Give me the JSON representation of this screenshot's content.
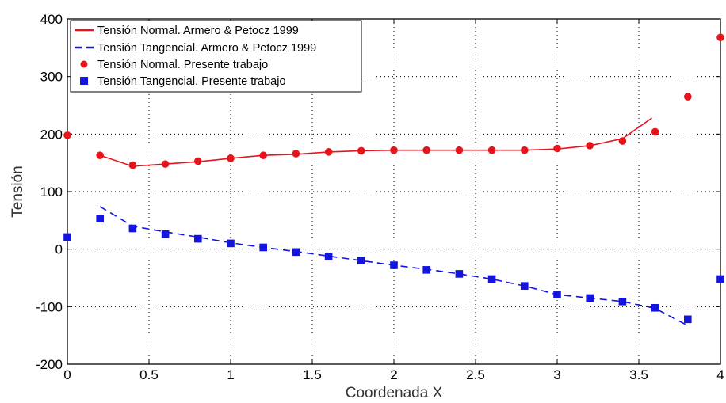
{
  "chart_data": {
    "type": "line",
    "xlabel": "Coordenada X",
    "ylabel": "Tensión",
    "xlim": [
      0,
      4
    ],
    "ylim": [
      -200,
      400
    ],
    "xticks": [
      "0",
      "0.5",
      "1",
      "1.5",
      "2",
      "2.5",
      "3",
      "3.5",
      "4"
    ],
    "yticks": [
      "-200",
      "-100",
      "0",
      "100",
      "200",
      "300",
      "400"
    ],
    "grid": true,
    "legend_position": "top-left",
    "series": [
      {
        "name": "Tensión Normal. Armero & Petocz 1999",
        "style": "solid-line",
        "color": "#e8141c",
        "x": [
          0.2,
          0.4,
          0.6,
          0.8,
          1.0,
          1.2,
          1.4,
          1.6,
          1.8,
          2.0,
          2.2,
          2.4,
          2.6,
          2.8,
          3.0,
          3.2,
          3.4,
          3.58
        ],
        "y": [
          163,
          144,
          148,
          152,
          158,
          163,
          165,
          169,
          171,
          172,
          172,
          172,
          172,
          172,
          174,
          180,
          192,
          228
        ]
      },
      {
        "name": "Tensión Tangencial.  Armero & Petocz 1999",
        "style": "dashed-line",
        "color": "#1414e0",
        "x": [
          0.2,
          0.4,
          0.6,
          0.8,
          1.0,
          1.2,
          1.4,
          1.6,
          1.8,
          2.0,
          2.2,
          2.4,
          2.6,
          2.8,
          3.0,
          3.2,
          3.4,
          3.6,
          3.8
        ],
        "y": [
          74,
          40,
          30,
          21,
          11,
          3,
          -4,
          -12,
          -20,
          -28,
          -35,
          -43,
          -52,
          -64,
          -79,
          -85,
          -91,
          -103,
          -133
        ]
      },
      {
        "name": "Tensión Normal. Presente trabajo",
        "style": "circle-markers",
        "color": "#e8141c",
        "x": [
          0,
          0.2,
          0.4,
          0.6,
          0.8,
          1.0,
          1.2,
          1.4,
          1.6,
          1.8,
          2.0,
          2.2,
          2.4,
          2.6,
          2.8,
          3.0,
          3.2,
          3.4,
          3.6,
          3.8,
          4.0
        ],
        "y": [
          198,
          163,
          146,
          148,
          153,
          158,
          163,
          166,
          169,
          171,
          172,
          172,
          172,
          172,
          172,
          175,
          180,
          188,
          204,
          265,
          368
        ]
      },
      {
        "name": "Tensión Tangencial. Presente trabajo",
        "style": "square-markers",
        "color": "#1414e0",
        "x": [
          0,
          0.2,
          0.4,
          0.6,
          0.8,
          1.0,
          1.2,
          1.4,
          1.6,
          1.8,
          2.0,
          2.2,
          2.4,
          2.6,
          2.8,
          3.0,
          3.2,
          3.4,
          3.6,
          3.8,
          4.0
        ],
        "y": [
          21,
          53,
          36,
          26,
          18,
          10,
          3,
          -5,
          -13,
          -20,
          -28,
          -36,
          -43,
          -52,
          -64,
          -79,
          -85,
          -91,
          -102,
          -122,
          -52
        ]
      }
    ]
  }
}
